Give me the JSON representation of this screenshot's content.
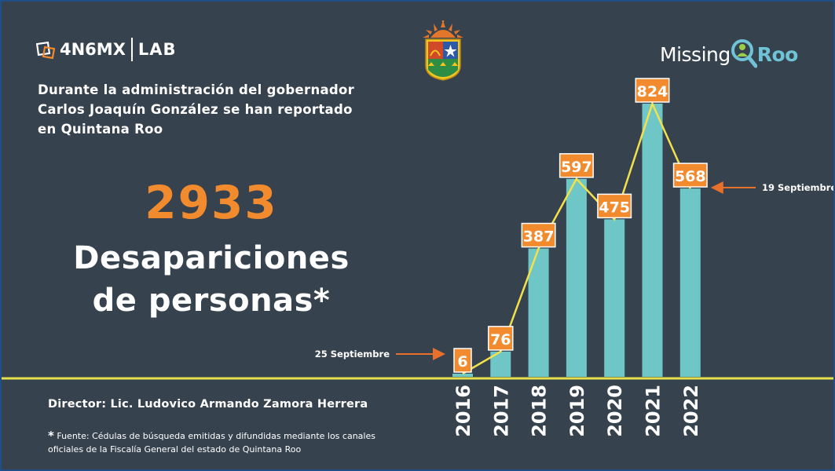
{
  "brand_left": {
    "name": "4N6MX",
    "lab": "LAB"
  },
  "brand_right": {
    "word1": "Missing",
    "word2": "Roo"
  },
  "intro_text": "Durante la administración del gobernador Carlos Joaquín González se han reportado en Quintana Roo",
  "headline": {
    "number": "2933",
    "label_line1": "Desapariciones",
    "label_line2": "de personas*"
  },
  "director": "Director: Lic. Ludovico Armando Zamora Herrera",
  "source": {
    "asterisk": "*",
    "text": "Fuente: Cédulas de búsqueda emitidas y difundidas mediante los canales oficiales de la Fiscalía General del estado de Quintana Roo"
  },
  "colors": {
    "background": "#37424f",
    "bars": "#6ec6c6",
    "line": "#f2e14b",
    "accent": "#f28a2e",
    "frame": "#1f4f86"
  },
  "chart_data": {
    "type": "bar",
    "categories": [
      "2016",
      "2017",
      "2018",
      "2019",
      "2020",
      "2021",
      "2022"
    ],
    "values": [
      6,
      76,
      387,
      597,
      475,
      824,
      568
    ],
    "overlay_line": true,
    "annotations": [
      {
        "category": "2016",
        "text": "25 Septiembre"
      },
      {
        "category": "2022",
        "text": "19 Septiembre"
      }
    ],
    "ylim": [
      0,
      824
    ],
    "grid": false,
    "legend": "none"
  }
}
